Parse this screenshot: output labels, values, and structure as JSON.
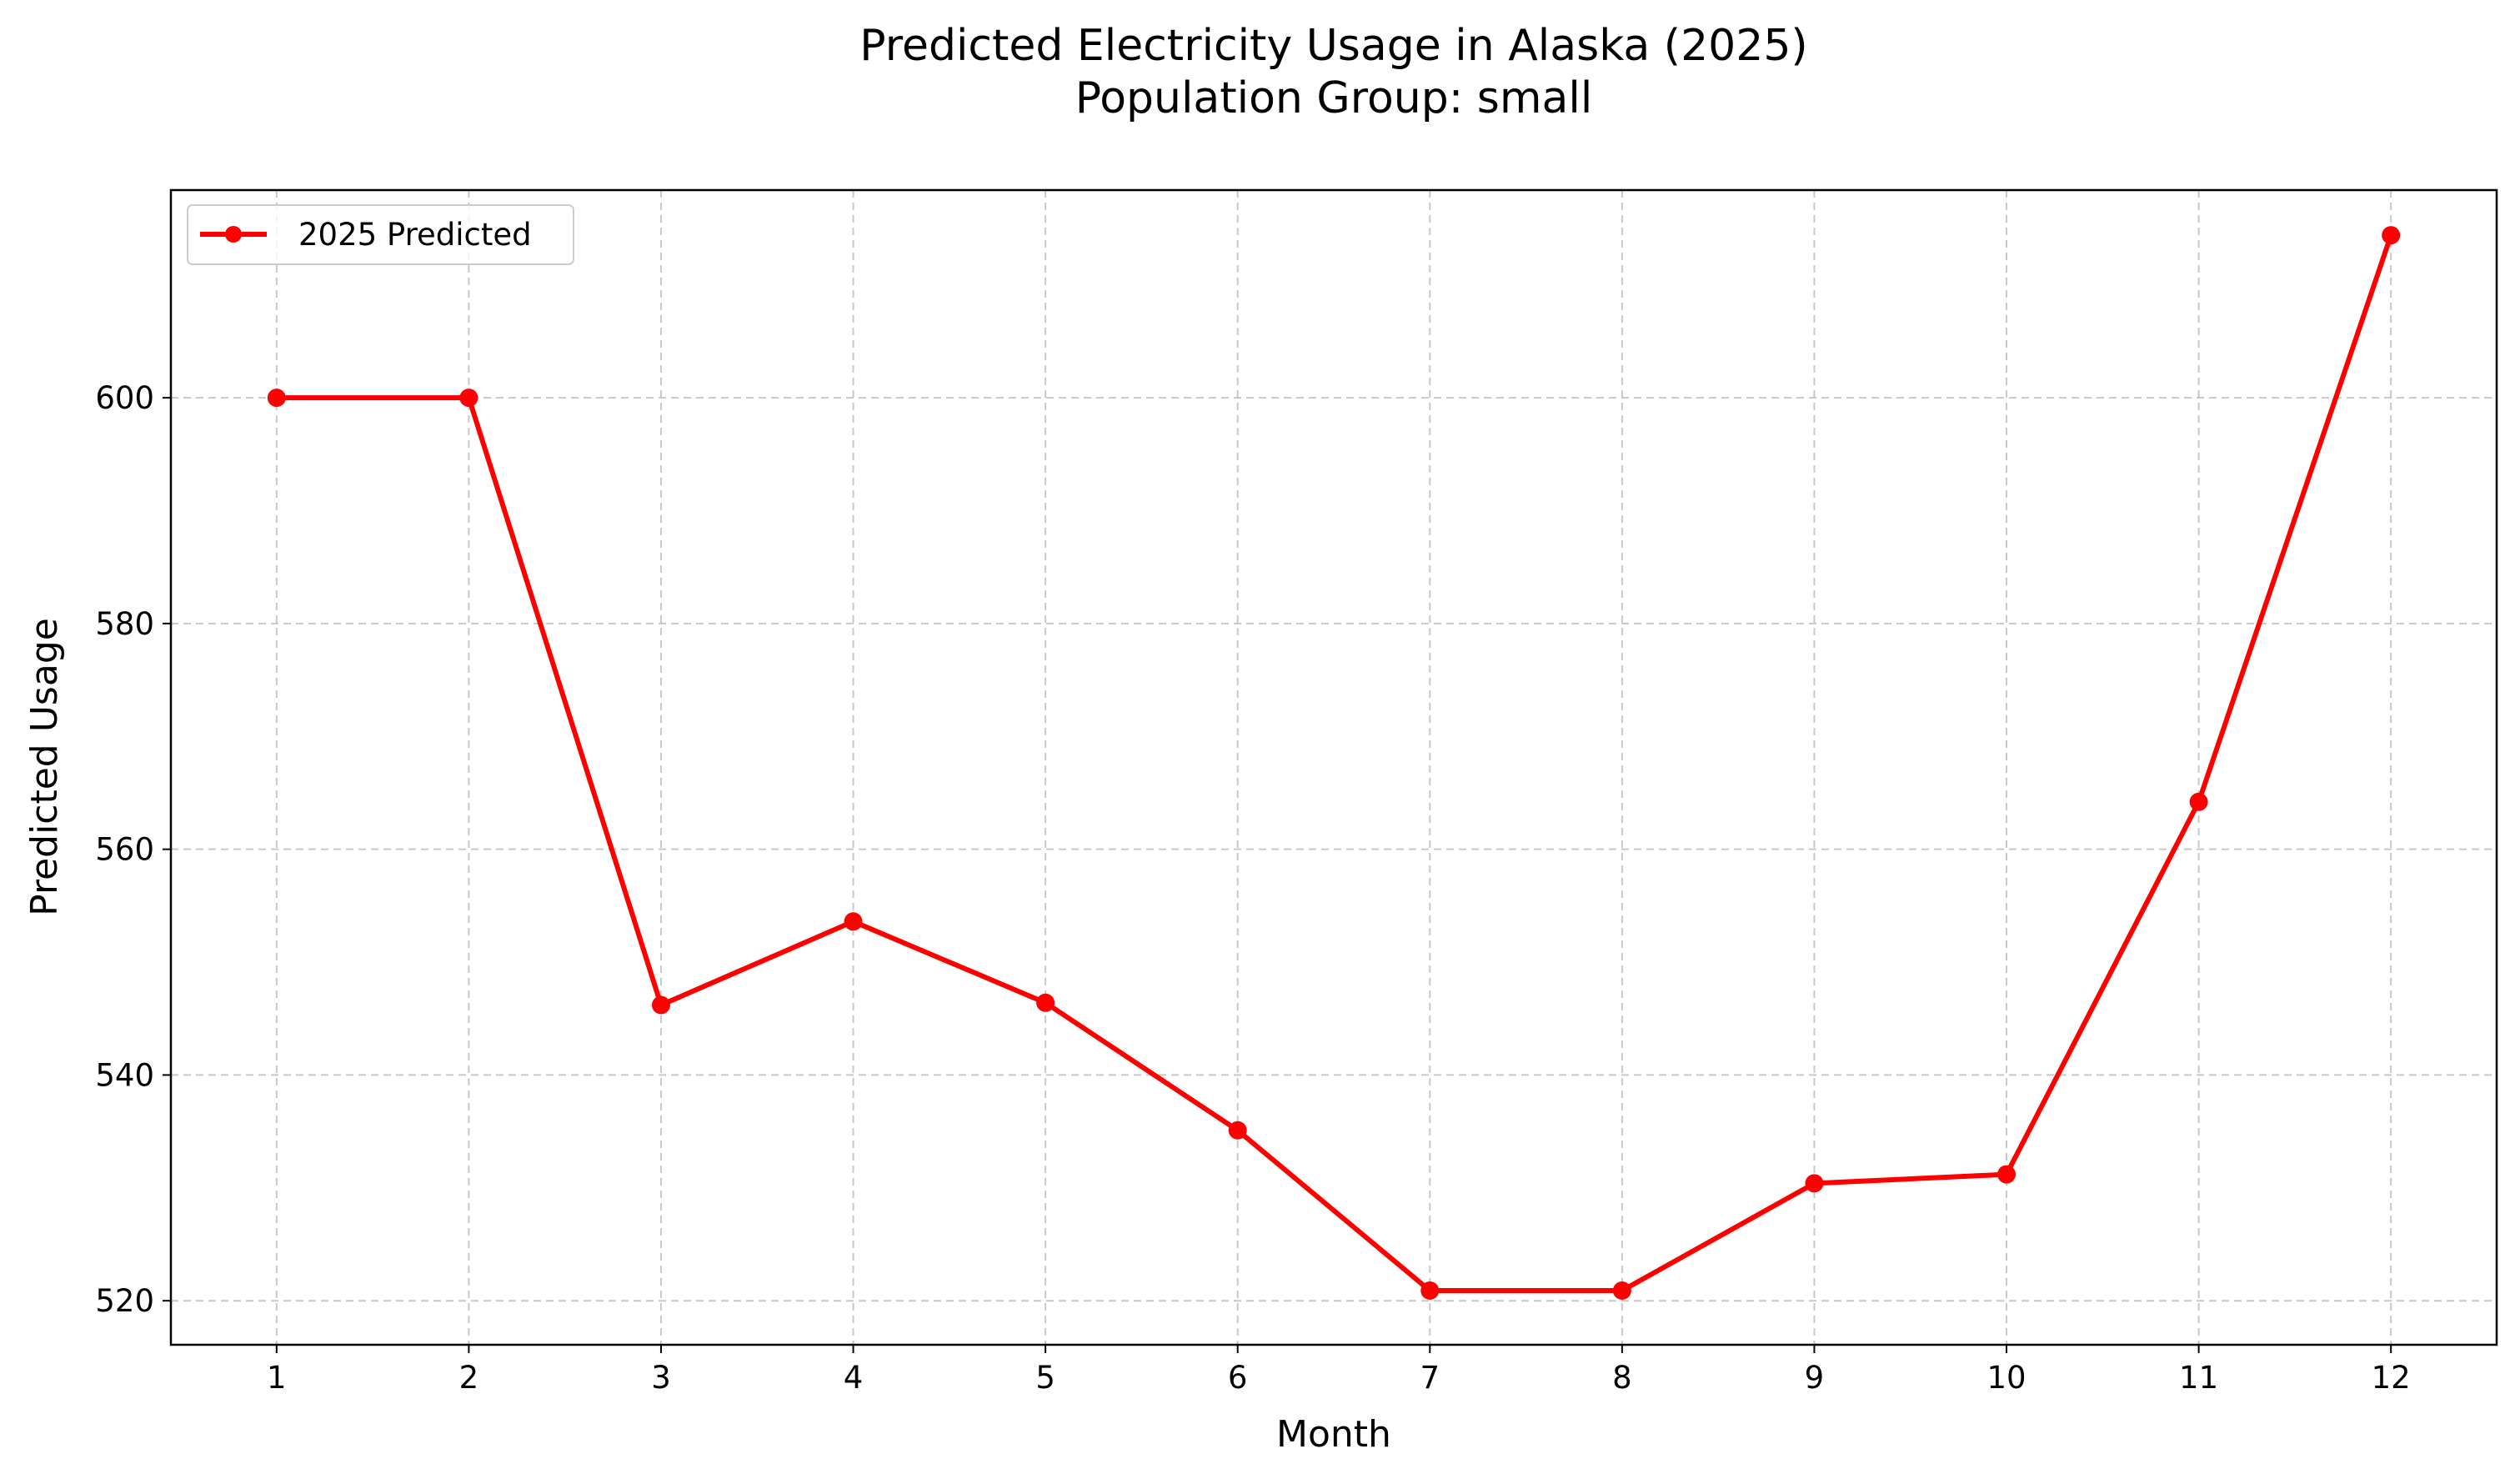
{
  "chart_data": {
    "type": "line",
    "title": "Predicted Electricity Usage in Alaska (2025)",
    "subtitle": "Population Group: small",
    "xlabel": "Month",
    "ylabel": "Predicted Usage",
    "x": [
      1,
      2,
      3,
      4,
      5,
      6,
      7,
      8,
      9,
      10,
      11,
      12
    ],
    "x_ticks": [
      "1",
      "2",
      "3",
      "4",
      "5",
      "6",
      "7",
      "8",
      "9",
      "10",
      "11",
      "12"
    ],
    "y_ticks": [
      "520",
      "540",
      "560",
      "580",
      "600"
    ],
    "y_tick_values": [
      520,
      540,
      560,
      580,
      600
    ],
    "xlim": [
      0.45,
      12.55
    ],
    "ylim": [
      516.1,
      618.4
    ],
    "grid": true,
    "legend_position": "top-left",
    "series": [
      {
        "name": "2025 Predicted",
        "color": "#ff0000",
        "marker": "circle",
        "values": [
          600.0,
          600.0,
          546.2,
          553.6,
          546.4,
          535.1,
          520.9,
          520.9,
          530.4,
          531.2,
          564.2,
          614.4
        ]
      }
    ]
  }
}
